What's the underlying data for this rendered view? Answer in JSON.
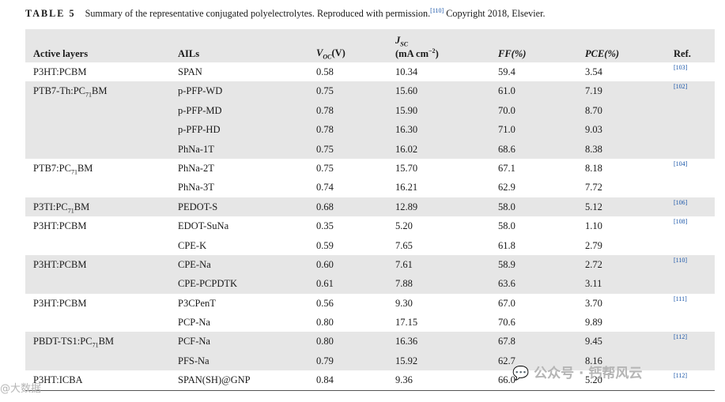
{
  "caption": {
    "label": "TABLE 5",
    "text": "Summary of the representative conjugated polyelectrolytes. Reproduced with permission.",
    "citation": "[110]",
    "copyright": " Copyright 2018, Elsevier."
  },
  "headers": {
    "active_layers": "Active layers",
    "ails": "AILs",
    "voc_symbol": "V",
    "voc_sub": "OC",
    "voc_unit": "(V)",
    "jsc_symbol": "J",
    "jsc_sub": "SC",
    "jsc_unit": "(mA cm",
    "jsc_exp": "−2",
    "jsc_close": ")",
    "ff": "FF(%)",
    "pce": "PCE(%)",
    "ref": "Ref."
  },
  "groups": [
    {
      "layer": [
        "P3HT:PCBM"
      ],
      "ref": "[103]",
      "rows": [
        {
          "ail": "SPAN",
          "voc": "0.58",
          "jsc": "10.34",
          "ff": "59.4",
          "pce": "3.54"
        }
      ]
    },
    {
      "layer": [
        "PTB7-Th:PC",
        "71",
        "BM"
      ],
      "ref": "[102]",
      "rows": [
        {
          "ail": "p-PFP-WD",
          "voc": "0.75",
          "jsc": "15.60",
          "ff": "61.0",
          "pce": "7.19"
        },
        {
          "ail": "p-PFP-MD",
          "voc": "0.78",
          "jsc": "15.90",
          "ff": "70.0",
          "pce": "8.70"
        },
        {
          "ail": "p-PFP-HD",
          "voc": "0.78",
          "jsc": "16.30",
          "ff": "71.0",
          "pce": "9.03"
        },
        {
          "ail": "PhNa-1T",
          "voc": "0.75",
          "jsc": "16.02",
          "ff": "68.6",
          "pce": "8.38"
        }
      ]
    },
    {
      "layer": [
        "PTB7:PC",
        "71",
        "BM"
      ],
      "ref": "[104]",
      "rows": [
        {
          "ail": "PhNa-2T",
          "voc": "0.75",
          "jsc": "15.70",
          "ff": "67.1",
          "pce": "8.18"
        },
        {
          "ail": "PhNa-3T",
          "voc": "0.74",
          "jsc": "16.21",
          "ff": "62.9",
          "pce": "7.72"
        }
      ]
    },
    {
      "layer": [
        "P3TI:PC",
        "71",
        "BM"
      ],
      "ref": "[106]",
      "rows": [
        {
          "ail": "PEDOT-S",
          "voc": "0.68",
          "jsc": "12.89",
          "ff": "58.0",
          "pce": "5.12"
        }
      ]
    },
    {
      "layer": [
        "P3HT:PCBM"
      ],
      "ref": "[108]",
      "rows": [
        {
          "ail": "EDOT-SuNa",
          "voc": "0.35",
          "jsc": "5.20",
          "ff": "58.0",
          "pce": "1.10"
        },
        {
          "ail": "CPE-K",
          "voc": "0.59",
          "jsc": "7.65",
          "ff": "61.8",
          "pce": "2.79"
        }
      ]
    },
    {
      "layer": [
        "P3HT:PCBM"
      ],
      "ref": "[110]",
      "rows": [
        {
          "ail": "CPE-Na",
          "voc": "0.60",
          "jsc": "7.61",
          "ff": "58.9",
          "pce": "2.72"
        },
        {
          "ail": "CPE-PCPDTK",
          "voc": "0.61",
          "jsc": "7.88",
          "ff": "63.6",
          "pce": "3.11"
        }
      ]
    },
    {
      "layer": [
        "P3HT:PCBM"
      ],
      "ref": "[111]",
      "rows": [
        {
          "ail": "P3CPenT",
          "voc": "0.56",
          "jsc": "9.30",
          "ff": "67.0",
          "pce": "3.70"
        },
        {
          "ail": "PCP-Na",
          "voc": "0.80",
          "jsc": "17.15",
          "ff": "70.6",
          "pce": "9.89"
        }
      ]
    },
    {
      "layer": [
        "PBDT-TS1:PC",
        "71",
        "BM"
      ],
      "ref": "[112]",
      "rows": [
        {
          "ail": "PCF-Na",
          "voc": "0.80",
          "jsc": "16.36",
          "ff": "67.8",
          "pce": "9.45"
        },
        {
          "ail": "PFS-Na",
          "voc": "0.79",
          "jsc": "15.92",
          "ff": "62.7",
          "pce": "8.16"
        }
      ]
    },
    {
      "layer": [
        "P3HT:ICBA"
      ],
      "ref": "[112]",
      "rows": [
        {
          "ail": "SPAN(SH)@GNP",
          "voc": "0.84",
          "jsc": "9.36",
          "ff": "66.0",
          "pce": "5.20"
        }
      ]
    }
  ],
  "watermark": {
    "right": "公众号 · 钙帮风云",
    "left": "@大数据"
  }
}
